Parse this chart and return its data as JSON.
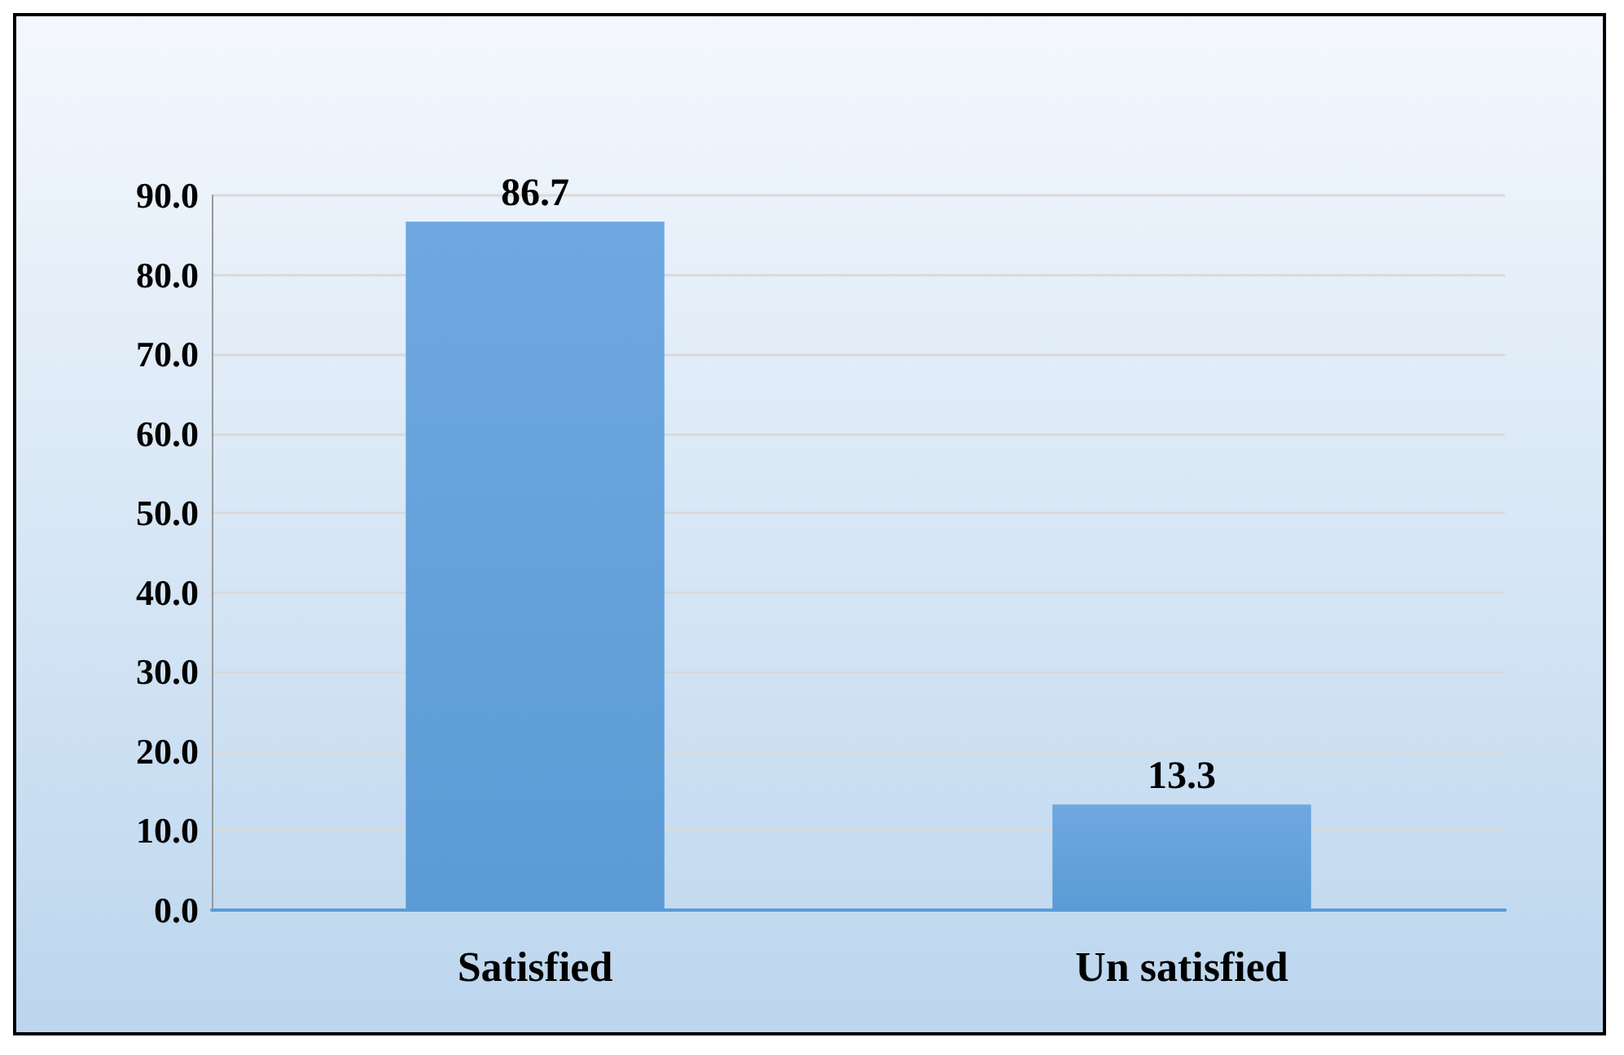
{
  "chart_data": {
    "type": "bar",
    "categories": [
      "Satisfied",
      "Un satisfied"
    ],
    "values": [
      86.7,
      13.3
    ],
    "color": "#5b9bd5",
    "ylim": [
      0,
      90
    ],
    "yticks": [
      {
        "value": 0,
        "label": "0.0"
      },
      {
        "value": 10,
        "label": "10.0"
      },
      {
        "value": 20,
        "label": "20.0"
      },
      {
        "value": 30,
        "label": "30.0"
      },
      {
        "value": 40,
        "label": "40.0"
      },
      {
        "value": 50,
        "label": "50.0"
      },
      {
        "value": 60,
        "label": "60.0"
      },
      {
        "value": 70,
        "label": "70.0"
      },
      {
        "value": 80,
        "label": "80.0"
      },
      {
        "value": 90,
        "label": "90.0"
      }
    ],
    "data_labels": true,
    "grid": true
  }
}
